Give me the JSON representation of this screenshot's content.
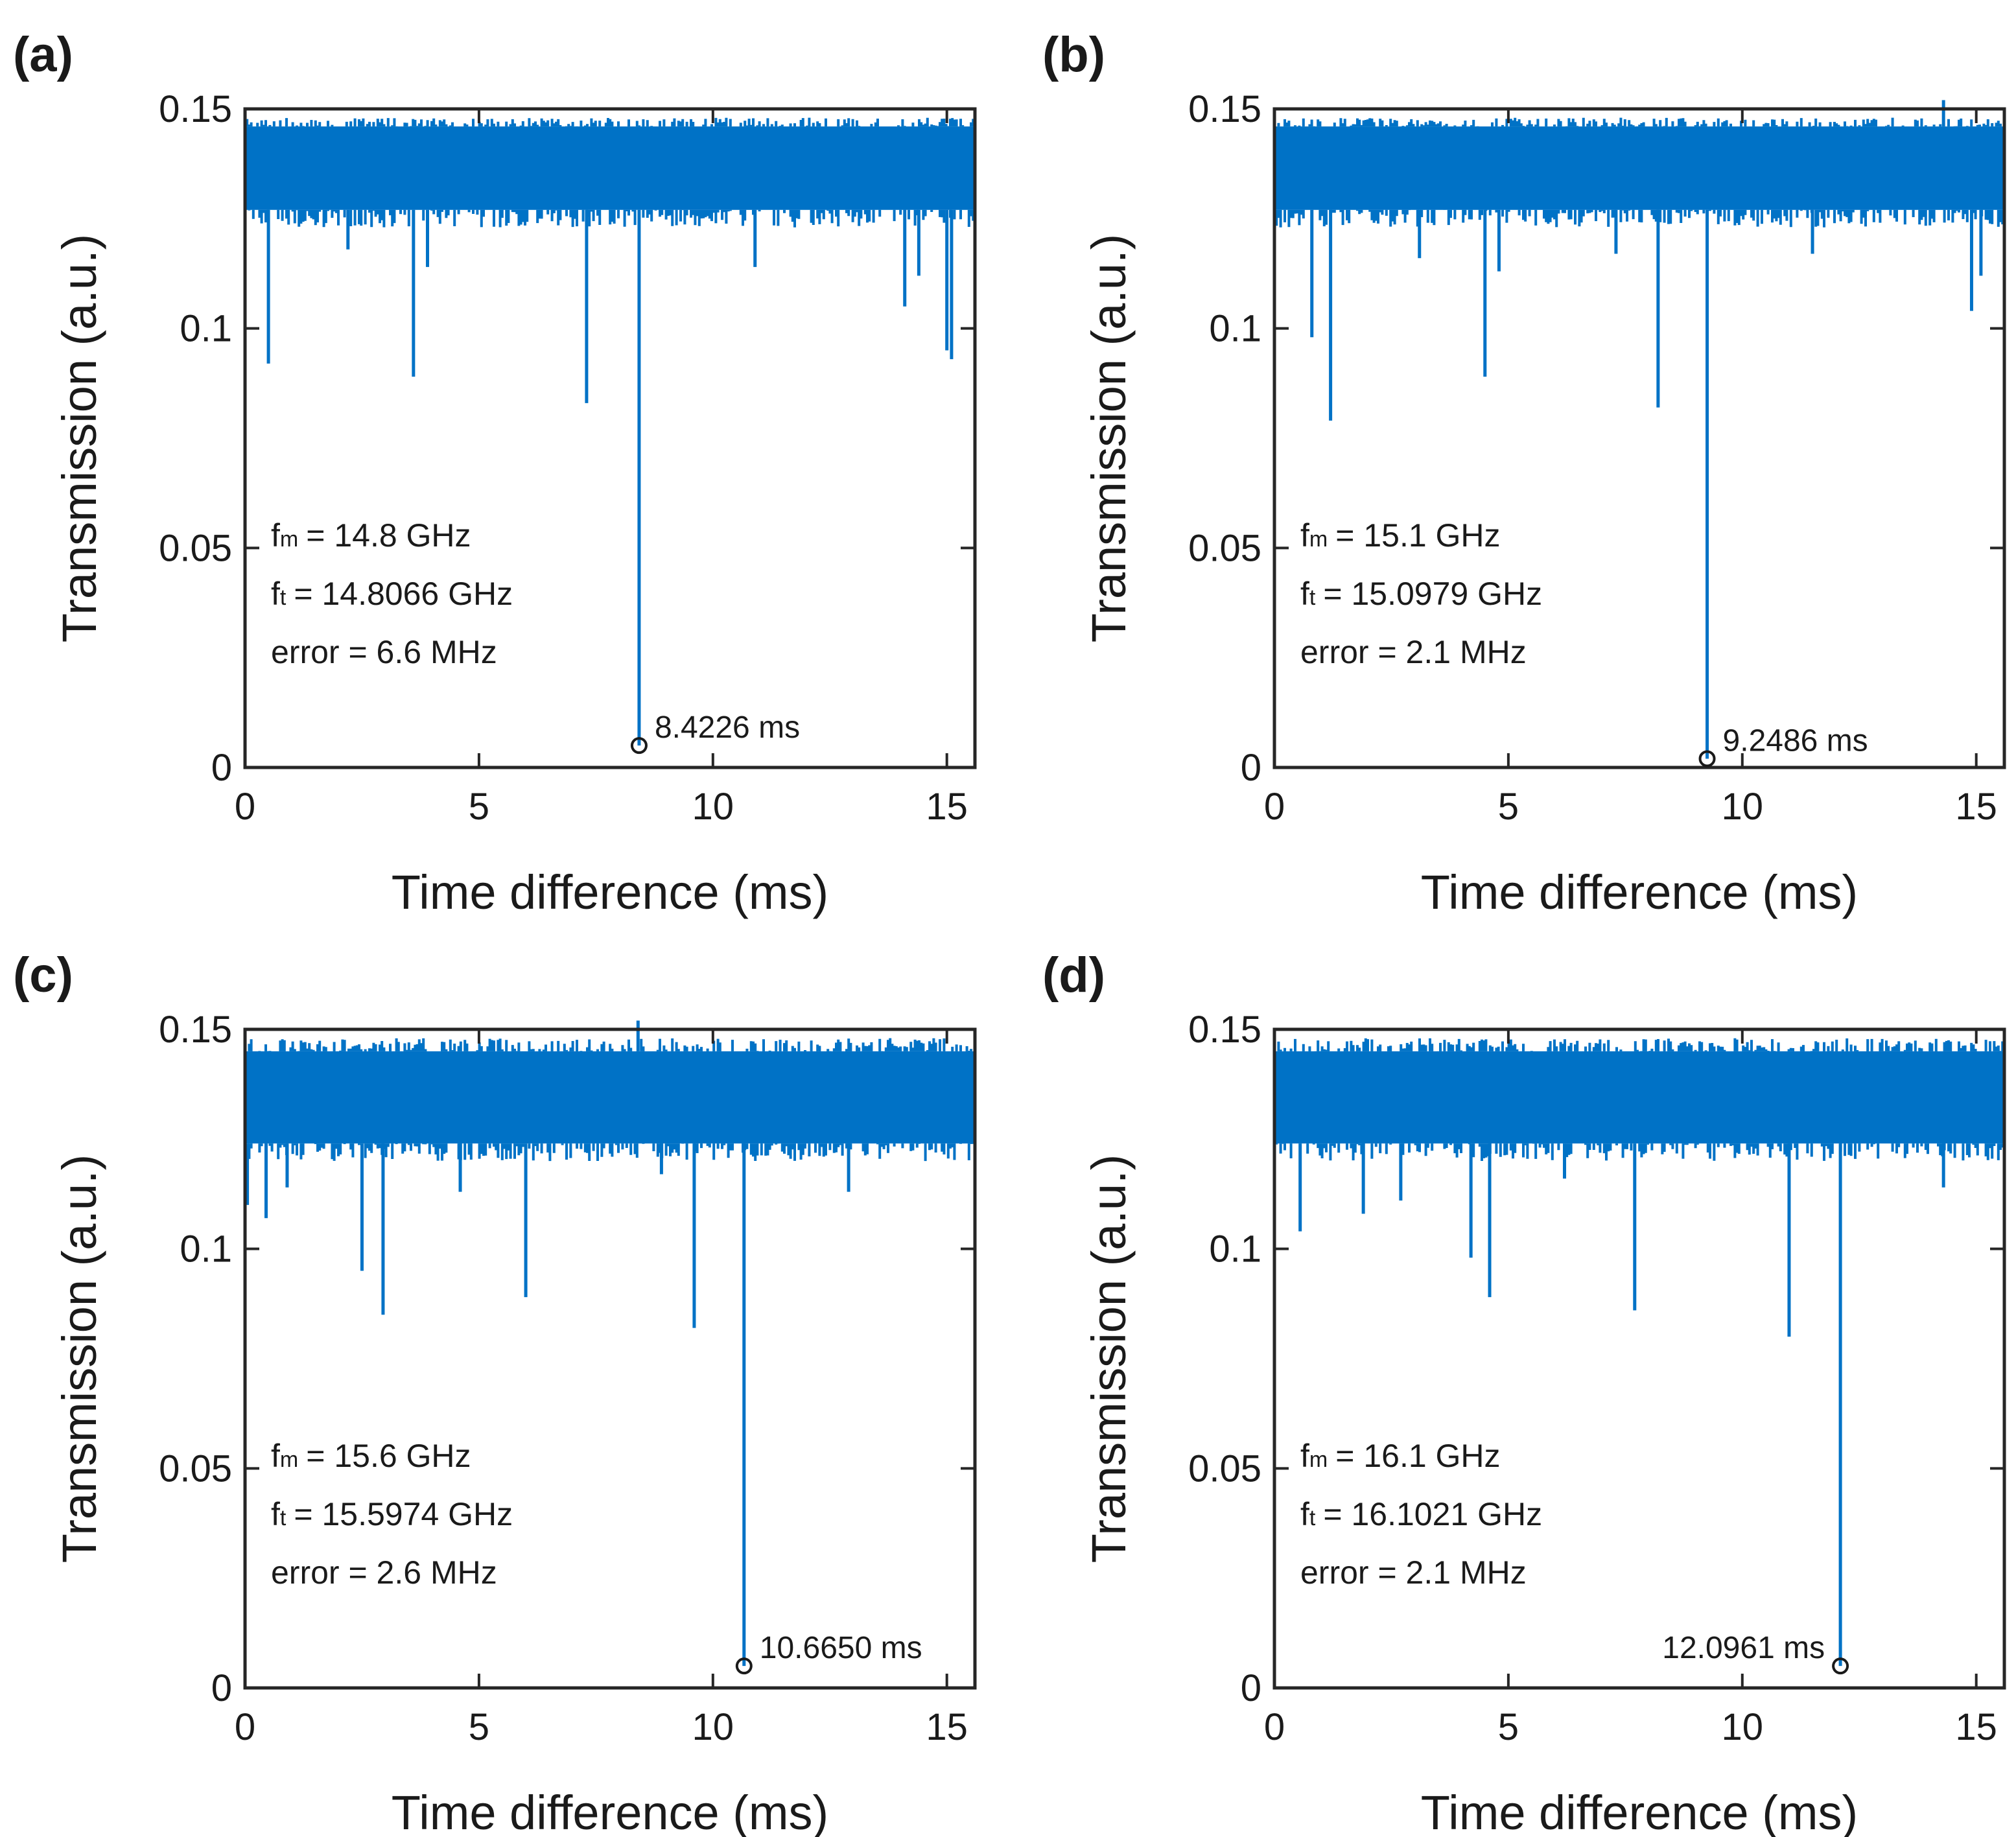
{
  "chart_data": [
    {
      "type": "line",
      "panel_label": "(a)",
      "xlabel": "Time difference (ms)",
      "ylabel": "Transmission (a.u.)",
      "xlim": [
        0,
        15.6
      ],
      "ylim": [
        0,
        0.15
      ],
      "xticks": [
        "0",
        "5",
        "10",
        "15"
      ],
      "yticks": [
        "0",
        "0.05",
        "0.1",
        "0.15"
      ],
      "series_color": "#0072C6",
      "baseline": {
        "low": 0.123,
        "high": 0.148,
        "band_low": 0.127,
        "band_high": 0.146
      },
      "dips": [
        [
          0.5,
          0.092
        ],
        [
          2.2,
          0.118
        ],
        [
          3.6,
          0.089
        ],
        [
          3.9,
          0.114
        ],
        [
          7.3,
          0.083
        ],
        [
          8.4226,
          0.005
        ],
        [
          10.9,
          0.114
        ],
        [
          14.1,
          0.105
        ],
        [
          14.4,
          0.112
        ],
        [
          15.0,
          0.095
        ],
        [
          15.1,
          0.093
        ]
      ],
      "annotations": {
        "fm_sub": "m",
        "fm_value": "= 14.8 GHz",
        "ft_sub": "t",
        "ft_value": "= 14.8066 GHz",
        "error": "error = 6.6 MHz"
      },
      "marker": {
        "x": 8.4226,
        "y": 0.005,
        "label": "8.4226 ms",
        "label_side": "right"
      }
    },
    {
      "type": "line",
      "panel_label": "(b)",
      "xlabel": "Time difference (ms)",
      "ylabel": "Transmission (a.u.)",
      "xlim": [
        0,
        15.6
      ],
      "ylim": [
        0,
        0.15
      ],
      "xticks": [
        "0",
        "5",
        "10",
        "15"
      ],
      "yticks": [
        "0",
        "0.05",
        "0.1",
        "0.15"
      ],
      "series_color": "#0072C6",
      "baseline": {
        "low": 0.123,
        "high": 0.148,
        "band_low": 0.127,
        "band_high": 0.146
      },
      "dips": [
        [
          0.8,
          0.098
        ],
        [
          1.2,
          0.079
        ],
        [
          3.1,
          0.116
        ],
        [
          4.5,
          0.089
        ],
        [
          4.8,
          0.113
        ],
        [
          7.3,
          0.117
        ],
        [
          8.2,
          0.082
        ],
        [
          9.2486,
          0.002
        ],
        [
          11.5,
          0.117
        ],
        [
          14.9,
          0.104
        ],
        [
          15.1,
          0.112
        ]
      ],
      "spikes": [
        [
          14.3,
          0.152
        ]
      ],
      "annotations": {
        "fm_sub": "m",
        "fm_value": "= 15.1 GHz",
        "ft_sub": "t",
        "ft_value": "= 15.0979 GHz",
        "error": "error = 2.1 MHz"
      },
      "marker": {
        "x": 9.2486,
        "y": 0.002,
        "label": "9.2486 ms",
        "label_side": "right"
      }
    },
    {
      "type": "line",
      "panel_label": "(c)",
      "xlabel": "Time difference (ms)",
      "ylabel": "Transmission (a.u.)",
      "xlim": [
        0,
        15.6
      ],
      "ylim": [
        0,
        0.15
      ],
      "xticks": [
        "0",
        "5",
        "10",
        "15"
      ],
      "yticks": [
        "0",
        "0.05",
        "0.1",
        "0.15"
      ],
      "series_color": "#0072C6",
      "baseline": {
        "low": 0.12,
        "high": 0.148,
        "band_low": 0.124,
        "band_high": 0.145
      },
      "dips": [
        [
          0.05,
          0.11
        ],
        [
          0.45,
          0.107
        ],
        [
          0.9,
          0.114
        ],
        [
          2.5,
          0.095
        ],
        [
          2.95,
          0.085
        ],
        [
          4.6,
          0.113
        ],
        [
          6.0,
          0.089
        ],
        [
          8.9,
          0.117
        ],
        [
          9.6,
          0.082
        ],
        [
          10.665,
          0.005
        ],
        [
          12.9,
          0.113
        ]
      ],
      "spikes": [
        [
          8.4,
          0.152
        ]
      ],
      "annotations": {
        "fm_sub": "m",
        "fm_value": "= 15.6 GHz",
        "ft_sub": "t",
        "ft_value": "= 15.5974 GHz",
        "error": "error = 2.6 MHz"
      },
      "marker": {
        "x": 10.665,
        "y": 0.005,
        "label": "10.6650 ms",
        "label_side": "right"
      }
    },
    {
      "type": "line",
      "panel_label": "(d)",
      "xlabel": "Time difference (ms)",
      "ylabel": "Transmission (a.u.)",
      "xlim": [
        0,
        15.6
      ],
      "ylim": [
        0,
        0.15
      ],
      "xticks": [
        "0",
        "5",
        "10",
        "15"
      ],
      "yticks": [
        "0",
        "0.05",
        "0.1",
        "0.15"
      ],
      "series_color": "#0072C6",
      "baseline": {
        "low": 0.12,
        "high": 0.148,
        "band_low": 0.124,
        "band_high": 0.145
      },
      "dips": [
        [
          0.55,
          0.104
        ],
        [
          1.9,
          0.108
        ],
        [
          2.7,
          0.111
        ],
        [
          4.2,
          0.098
        ],
        [
          4.6,
          0.089
        ],
        [
          6.2,
          0.116
        ],
        [
          7.7,
          0.086
        ],
        [
          11.0,
          0.08
        ],
        [
          12.0961,
          0.005
        ],
        [
          14.3,
          0.114
        ]
      ],
      "annotations": {
        "fm_sub": "m",
        "fm_value": "= 16.1 GHz",
        "ft_sub": "t",
        "ft_value": "= 16.1021 GHz",
        "error": "error = 2.1 MHz"
      },
      "marker": {
        "x": 12.0961,
        "y": 0.005,
        "label": "12.0961 ms",
        "label_side": "left"
      }
    }
  ]
}
